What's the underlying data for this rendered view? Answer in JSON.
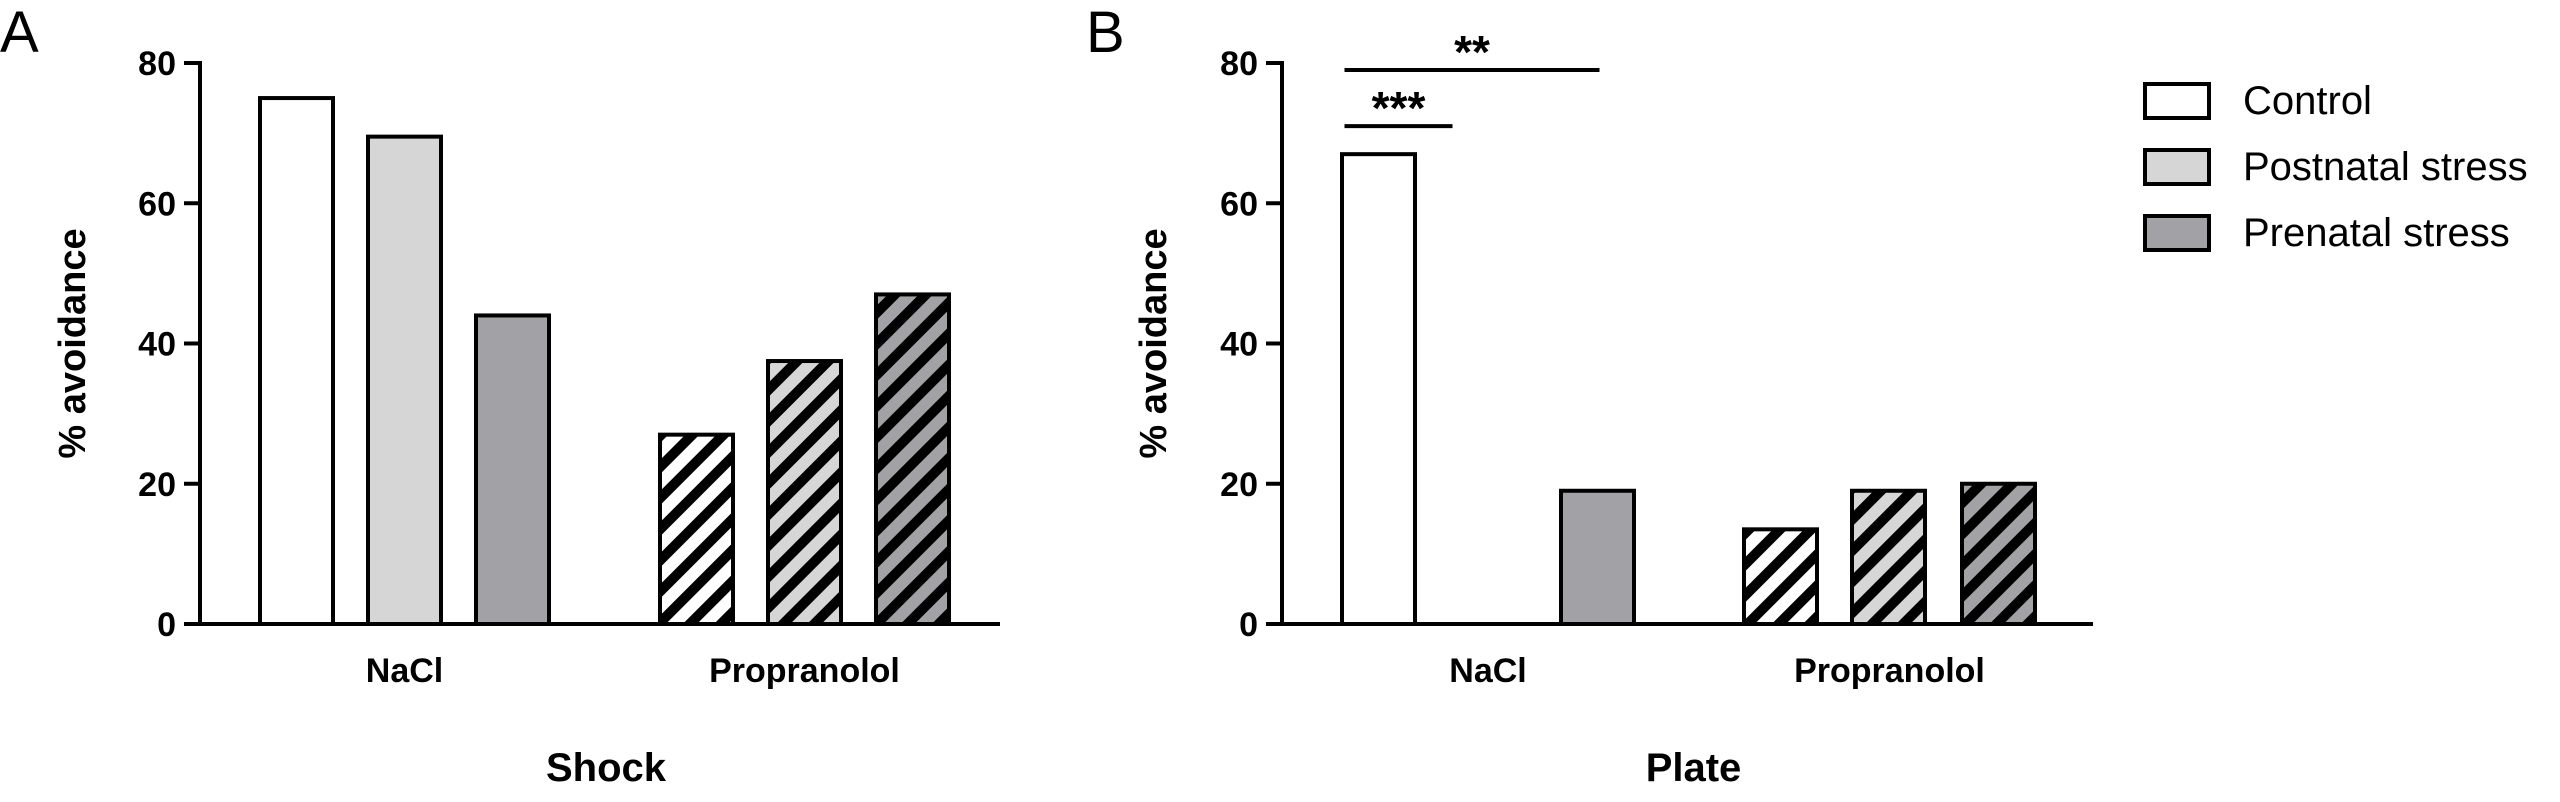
{
  "colors": {
    "control": "#ffffff",
    "postnatal": "#d6d6d6",
    "prenatal": "#a1a1a6",
    "stroke": "#000000"
  },
  "legend": {
    "placement": "top-right",
    "items": [
      {
        "label": "Control",
        "color": "#ffffff"
      },
      {
        "label": "Postnatal stress",
        "color": "#d6d6d6"
      },
      {
        "label": "Prenatal stress",
        "color": "#a1a1a6"
      }
    ]
  },
  "chart_data": [
    {
      "type": "bar",
      "panel": "A",
      "title": "Shock",
      "ylabel": "% avoidance",
      "ylim": [
        0,
        80
      ],
      "yticks": [
        "0",
        "20",
        "40",
        "60",
        "80"
      ],
      "categories": [
        "NaCl",
        "Propranolol"
      ],
      "series": [
        {
          "name": "Control",
          "values": [
            75,
            27
          ],
          "color": "#ffffff"
        },
        {
          "name": "Postnatal stress",
          "values": [
            69.5,
            37.5
          ],
          "color": "#d6d6d6"
        },
        {
          "name": "Prenatal stress",
          "values": [
            44,
            47
          ],
          "color": "#a1a1a6"
        }
      ],
      "hatched_category": "Propranolol",
      "significance": []
    },
    {
      "type": "bar",
      "panel": "B",
      "title": "Plate",
      "ylabel": "% avoidance",
      "ylim": [
        0,
        80
      ],
      "yticks": [
        "0",
        "20",
        "40",
        "60",
        "80"
      ],
      "categories": [
        "NaCl",
        "Propranolol"
      ],
      "series": [
        {
          "name": "Control",
          "values": [
            67,
            13.5
          ],
          "color": "#ffffff"
        },
        {
          "name": "Postnatal stress",
          "values": [
            0,
            19
          ],
          "color": "#d6d6d6"
        },
        {
          "name": "Prenatal stress",
          "values": [
            19,
            20
          ],
          "color": "#a1a1a6"
        }
      ],
      "hatched_category": "Propranolol",
      "significance": [
        {
          "label": "***",
          "from": "Control",
          "to": "Postnatal stress",
          "category": "NaCl",
          "level": 71
        },
        {
          "label": "**",
          "from": "Control",
          "to": "Prenatal stress",
          "category": "NaCl",
          "level": 79
        }
      ]
    }
  ]
}
